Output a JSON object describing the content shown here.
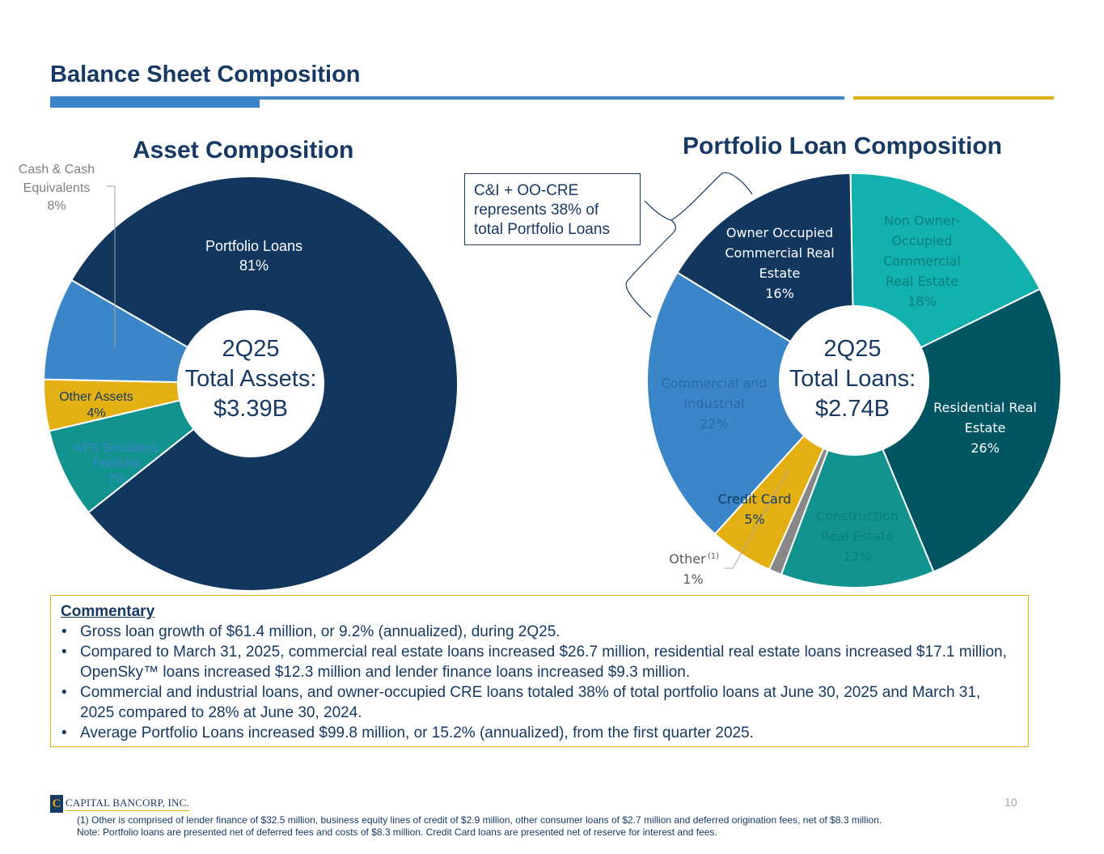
{
  "page": {
    "title": "Balance Sheet Composition",
    "page_number": "10"
  },
  "colors": {
    "navy": "#12375f",
    "blue": "#3a86c8",
    "gold": "#e2b013",
    "teal": "#139390",
    "aqua": "#13b1ae",
    "dark_teal": "#005562",
    "gray": "#888888"
  },
  "chart_data": [
    {
      "type": "pie",
      "title": "Asset Composition",
      "center_text": [
        "2Q25",
        "Total Assets:",
        "$3.39B"
      ],
      "slices": [
        {
          "label": "Portfolio Loans",
          "value": 81,
          "value_label": "81%",
          "color": "#12375f"
        },
        {
          "label": "AFS Securities Portfolio",
          "value": 7,
          "value_label": "7%",
          "color": "#139390"
        },
        {
          "label": "Other Assets",
          "value": 4,
          "value_label": "4%",
          "color": "#e2b013"
        },
        {
          "label": "Cash & Cash Equivalents",
          "value": 8,
          "value_label": "8%",
          "color": "#3a86c8"
        }
      ]
    },
    {
      "type": "pie",
      "title": "Portfolio Loan Composition",
      "center_text": [
        "2Q25",
        "Total Loans:",
        "$2.74B"
      ],
      "slices": [
        {
          "label": "Non Owner-Occupied Commercial Real Estate",
          "value": 18,
          "value_label": "18%",
          "color": "#13b1ae"
        },
        {
          "label": "Residential Real Estate",
          "value": 26,
          "value_label": "26%",
          "color": "#005562"
        },
        {
          "label": "Construction Real Estate",
          "value": 12,
          "value_label": "12%",
          "color": "#139390"
        },
        {
          "label": "Other",
          "value": 1,
          "value_label": "1%",
          "color": "#888888"
        },
        {
          "label": "Credit Card",
          "value": 5,
          "value_label": "5%",
          "color": "#e2b013"
        },
        {
          "label": "Commercial and Industrial",
          "value": 22,
          "value_label": "22%",
          "color": "#3a86c8"
        },
        {
          "label": "Owner Occupied Commercial Real Estate",
          "value": 16,
          "value_label": "16%",
          "color": "#12375f"
        }
      ]
    }
  ],
  "asset_labels": {
    "portfolio": [
      "Portfolio Loans",
      "81%"
    ],
    "cash": [
      "Cash & Cash",
      "Equivalents",
      "8%"
    ],
    "other": [
      "Other Assets",
      "4%"
    ],
    "afs": [
      "AFS Securities",
      "Portfolio",
      "7%"
    ]
  },
  "loan_labels": {
    "oocre": [
      "Owner Occupied",
      "Commercial Real",
      "Estate",
      "16%"
    ],
    "noocre": [
      "Non Owner-",
      "Occupied",
      "Commercial",
      "Real Estate",
      "18%"
    ],
    "resi": [
      "Residential Real",
      "Estate",
      "26%"
    ],
    "construction": [
      "Construction",
      "Real Estate",
      "12%"
    ],
    "ci": [
      "Commercial and",
      "Industrial",
      "22%"
    ],
    "credit_card": [
      "Credit Card",
      "5%"
    ],
    "other": [
      "Other",
      "(1)",
      "1%"
    ]
  },
  "callout": {
    "text": "C&I + OO-CRE represents 38% of total Portfolio Loans"
  },
  "commentary": {
    "title": "Commentary",
    "bullets": [
      "Gross loan growth of $61.4 million, or 9.2% (annualized), during 2Q25.",
      "Compared to March 31, 2025, commercial real estate loans increased $26.7 million, residential real estate loans increased $17.1 million, OpenSky™ loans increased $12.3 million and lender finance loans increased $9.3 million.",
      "Commercial and industrial loans, and owner-occupied CRE loans totaled 38% of total portfolio loans at June 30, 2025 and March 31, 2025 compared to 28% at June 30, 2024.",
      "Average Portfolio Loans increased $99.8 million, or 15.2% (annualized), from the first quarter 2025."
    ]
  },
  "logo": {
    "mark": "C",
    "text": "CAPITAL BANCORP, INC."
  },
  "footnotes": [
    "(1)    Other is comprised of lender finance of $32.5 million, business equity lines of credit of $2.9 million, other consumer loans of $2.7 million and deferred origination fees, net of $8.3 million.",
    "Note: Portfolio loans are presented net of deferred fees and costs of $8.3 million. Credit Card loans are presented net of reserve for interest and fees."
  ]
}
